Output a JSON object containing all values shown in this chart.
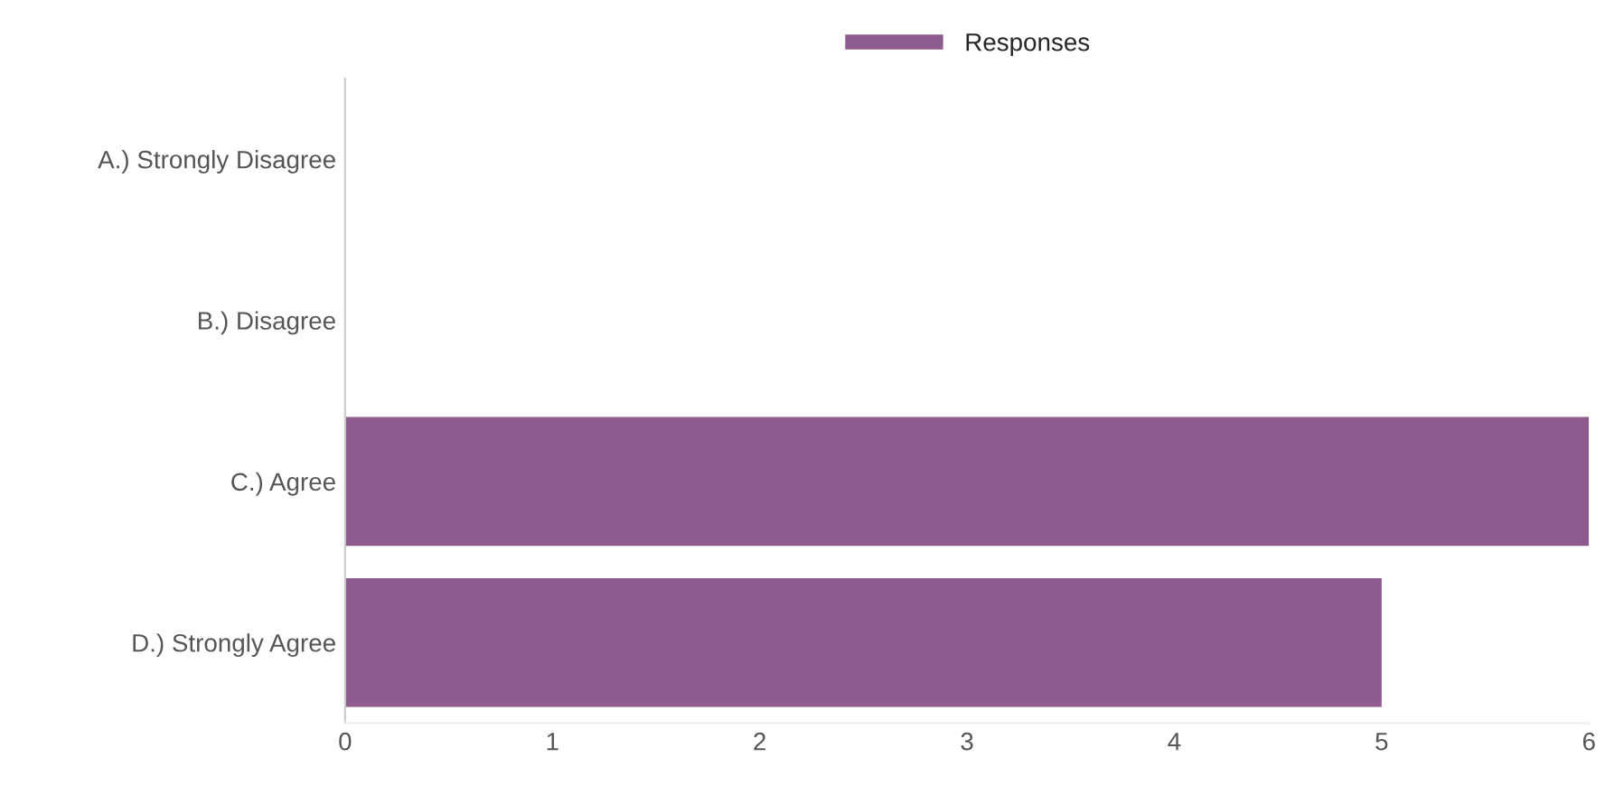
{
  "chart_data": {
    "type": "bar",
    "orientation": "horizontal",
    "categories": [
      "A.) Strongly Disagree",
      "B.) Disagree",
      "C.) Agree",
      "D.) Strongly Agree"
    ],
    "series": [
      {
        "name": "Responses",
        "color": "#8e5b8e",
        "values": [
          0,
          0,
          6,
          5
        ]
      }
    ],
    "xlim": [
      0,
      6
    ],
    "xticks": [
      0,
      1,
      2,
      3,
      4,
      5,
      6
    ],
    "grid": false,
    "legend": "top"
  }
}
